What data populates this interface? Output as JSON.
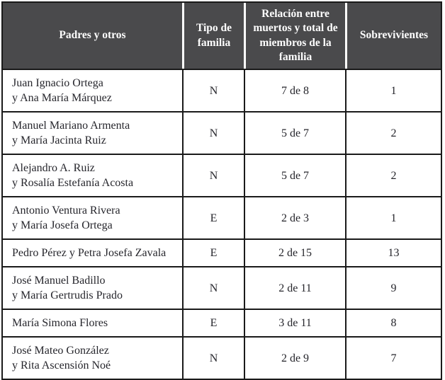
{
  "table": {
    "headers": {
      "padres": "Padres y otros",
      "tipo": "Tipo de familia",
      "relacion": "Relación entre muertos y total de miembros de la familia",
      "sobrevivientes": "Sobrevivientes"
    },
    "rows": [
      {
        "padres_line1": "Juan Ignacio Ortega",
        "padres_line2": "y Ana María Márquez",
        "tipo": "N",
        "relacion": "7 de 8",
        "sobrevivientes": "1"
      },
      {
        "padres_line1": "Manuel Mariano Armenta",
        "padres_line2": "y María Jacinta Ruiz",
        "tipo": "N",
        "relacion": "5 de 7",
        "sobrevivientes": "2"
      },
      {
        "padres_line1": "Alejandro A. Ruiz",
        "padres_line2": "y Rosalía Estefanía Acosta",
        "tipo": "N",
        "relacion": "5 de 7",
        "sobrevivientes": "2"
      },
      {
        "padres_line1": "Antonio Ventura Rivera",
        "padres_line2": "y María Josefa Ortega",
        "tipo": "E",
        "relacion": "2 de 3",
        "sobrevivientes": "1"
      },
      {
        "padres_line1": "Pedro Pérez y Petra Josefa Zavala",
        "tipo": "E",
        "relacion": "2 de 15",
        "sobrevivientes": "13"
      },
      {
        "padres_line1": "José Manuel Badillo",
        "padres_line2": "y María Gertrudis Prado",
        "tipo": "N",
        "relacion": "2 de 11",
        "sobrevivientes": "9"
      },
      {
        "padres_line1": "María Simona Flores",
        "tipo": "E",
        "relacion": "3 de 11",
        "sobrevivientes": "8"
      },
      {
        "padres_line1": "José Mateo González",
        "padres_line2": "y Rita Ascensión Noé",
        "tipo": "N",
        "relacion": "2 de 9",
        "sobrevivientes": "7"
      }
    ],
    "colors": {
      "header_bg": "#4a4a4c",
      "header_text": "#ffffff",
      "border": "#1a1a1a",
      "body_text": "#26262c"
    }
  }
}
